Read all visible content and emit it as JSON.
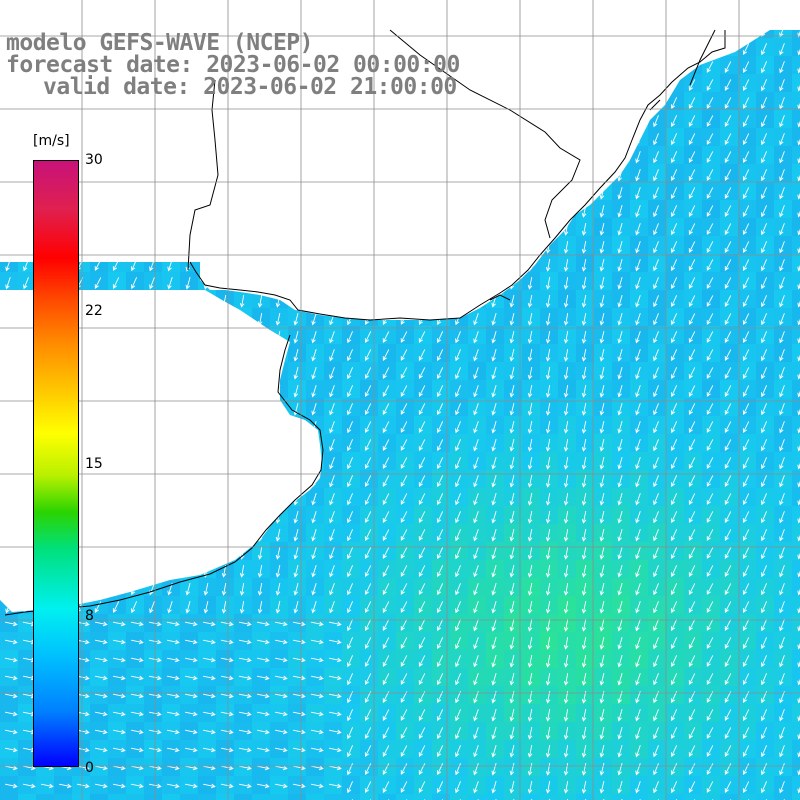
{
  "title": {
    "line1": "modelo GEFS-WAVE (NCEP)",
    "line2": "forecast date: 2023-06-02 00:00:00",
    "line3": "valid date: 2023-06-02 21:00:00"
  },
  "colorbar": {
    "unit": "[m/s]",
    "ticks": [
      "30",
      "22",
      "15",
      "8",
      "0"
    ],
    "tick_values": [
      30,
      22,
      15,
      8,
      0
    ],
    "range": [
      0,
      30
    ]
  },
  "map": {
    "variable": "wind speed and direction",
    "field_palette": {
      "low": "#1e6ee6",
      "mid": "#17c8f0",
      "high": "#2de68c"
    },
    "land_color": "#ffffff",
    "coast_color": "#000000",
    "grid_color": "#8c8c8c",
    "arrow_color": "#ffffff"
  }
}
